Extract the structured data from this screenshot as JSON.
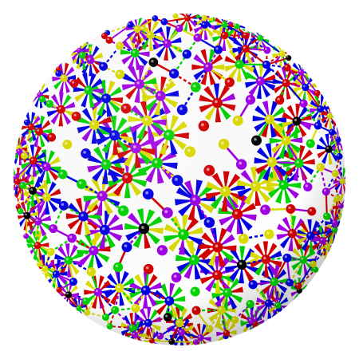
{
  "image": {
    "subject": "polyhedron-ball-and-stick-model",
    "background": "#ffffff",
    "palette": {
      "red": "#d40000",
      "green": "#00d400",
      "blue": "#0000e6",
      "yellow": "#dcdc00",
      "magenta": "#a000e6",
      "black": "#000000"
    },
    "sphere_count_estimate": 240,
    "strut_style": "multicolor-radiating"
  }
}
